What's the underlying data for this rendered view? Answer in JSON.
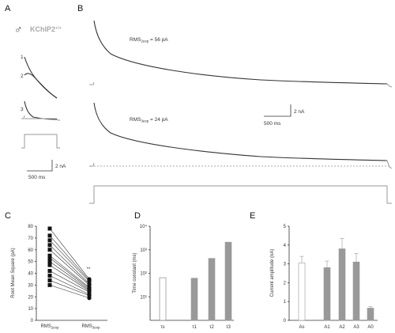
{
  "panels": {
    "A": {
      "letter": "A",
      "genotype_symbol": "♂",
      "genotype": "KChIP2",
      "genotype_sup": "+/+",
      "trace_labels": [
        "1",
        "2",
        "3"
      ],
      "scale_current": "2 nA",
      "scale_time": "500 ms"
    },
    "B": {
      "letter": "B",
      "fit1_label": "RMS",
      "fit1_sub": "2exp",
      "fit1_value": " = 56 pA",
      "fit2_label": "RMS",
      "fit2_sub": "3exp",
      "fit2_value": " = 24 pA",
      "scale_current": "2 nA",
      "scale_time": "500 ms"
    },
    "C": {
      "letter": "C",
      "ylabel": "Root Mean Square (pA)",
      "yticks": [
        "0",
        "10",
        "20",
        "30",
        "40",
        "50",
        "60",
        "70",
        "80"
      ],
      "xlabels": [
        {
          "main": "RMS",
          "sub": "2exp"
        },
        {
          "main": "RMS",
          "sub": "3exp"
        }
      ],
      "significance": "**"
    },
    "D": {
      "letter": "D",
      "ylabel": "Time constant (ms)",
      "yticks": [
        "10¹",
        "10²",
        "10³",
        "10⁴"
      ],
      "bars": [
        {
          "label": "τs",
          "value": 65,
          "fill": "#ffffff"
        },
        {
          "label": "τ1",
          "value": 62,
          "fill": "#999999"
        },
        {
          "label": "τ2",
          "value": 430,
          "fill": "#999999"
        },
        {
          "label": "τ3",
          "value": 2100,
          "fill": "#999999"
        }
      ]
    },
    "E": {
      "letter": "E",
      "ylabel": "Current amplitude (nA)",
      "yticks": [
        "0",
        "1",
        "2",
        "3",
        "4",
        "5"
      ],
      "bars": [
        {
          "label": "As",
          "value": 3.05,
          "err": 0.35,
          "fill": "#ffffff"
        },
        {
          "label": "A1",
          "value": 2.8,
          "err": 0.35,
          "fill": "#999999"
        },
        {
          "label": "A2",
          "value": 3.8,
          "err": 0.55,
          "fill": "#999999"
        },
        {
          "label": "A3",
          "value": 3.1,
          "err": 0.45,
          "fill": "#999999"
        },
        {
          "label": "A0",
          "value": 0.65,
          "err": 0.08,
          "fill": "#999999"
        }
      ]
    }
  },
  "chart_data": [
    {
      "type": "scatter",
      "panel": "C",
      "ylabel": "Root Mean Square (pA)",
      "ylim": [
        0,
        80
      ],
      "categories": [
        "RMS2exp",
        "RMS3exp"
      ],
      "pairs": [
        [
          78,
          35
        ],
        [
          72,
          34
        ],
        [
          68,
          33
        ],
        [
          64,
          31
        ],
        [
          60,
          30
        ],
        [
          55,
          28
        ],
        [
          53,
          27
        ],
        [
          50,
          26
        ],
        [
          47,
          25
        ],
        [
          42,
          24
        ],
        [
          38,
          22
        ],
        [
          34,
          21
        ],
        [
          30,
          19
        ]
      ]
    },
    {
      "type": "bar",
      "panel": "D",
      "scale": "log",
      "ylabel": "Time constant (ms)",
      "ylim": [
        1,
        10000
      ],
      "categories": [
        "τs",
        "τ1",
        "τ2",
        "τ3"
      ],
      "values": [
        65,
        62,
        430,
        2100
      ]
    },
    {
      "type": "bar",
      "panel": "E",
      "ylabel": "Current amplitude (nA)",
      "ylim": [
        0,
        5
      ],
      "categories": [
        "As",
        "A1",
        "A2",
        "A3",
        "A0"
      ],
      "values": [
        3.05,
        2.8,
        3.8,
        3.1,
        0.65
      ],
      "errors": [
        0.35,
        0.35,
        0.55,
        0.45,
        0.08
      ]
    }
  ]
}
